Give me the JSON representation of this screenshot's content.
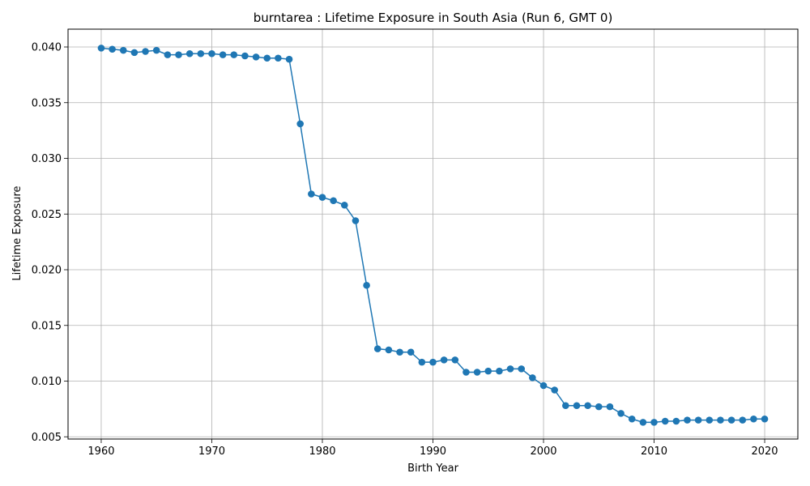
{
  "chart_data": {
    "type": "line",
    "title": "burntarea : Lifetime Exposure in South Asia (Run 6, GMT 0)",
    "xlabel": "Birth Year",
    "ylabel": "Lifetime Exposure",
    "xlim": [
      1957,
      2023
    ],
    "ylim": [
      0.0048,
      0.0416
    ],
    "xticks": [
      1960,
      1970,
      1980,
      1990,
      2000,
      2010,
      2020
    ],
    "yticks": [
      "0.005",
      "0.010",
      "0.015",
      "0.020",
      "0.025",
      "0.030",
      "0.035",
      "0.040"
    ],
    "grid": true,
    "line_color": "#1f77b4",
    "marker": "circle",
    "series": [
      {
        "x": [
          1960,
          1961,
          1962,
          1963,
          1964,
          1965,
          1966,
          1967,
          1968,
          1969,
          1970,
          1971,
          1972,
          1973,
          1974,
          1975,
          1976,
          1977,
          1978,
          1979,
          1980,
          1981,
          1982,
          1983,
          1984,
          1985,
          1986,
          1987,
          1988,
          1989,
          1990,
          1991,
          1992,
          1993,
          1994,
          1995,
          1996,
          1997,
          1998,
          1999,
          2000,
          2001,
          2002,
          2003,
          2004,
          2005,
          2006,
          2007,
          2008,
          2009,
          2010,
          2011,
          2012,
          2013,
          2014,
          2015,
          2016,
          2017,
          2018,
          2019,
          2020
        ],
        "values": [
          0.0399,
          0.0398,
          0.0397,
          0.0395,
          0.0396,
          0.0397,
          0.0393,
          0.0393,
          0.0394,
          0.0394,
          0.0394,
          0.0393,
          0.0393,
          0.0392,
          0.0391,
          0.039,
          0.039,
          0.0389,
          0.0331,
          0.0268,
          0.0265,
          0.0262,
          0.0258,
          0.0244,
          0.0186,
          0.0129,
          0.0128,
          0.0126,
          0.0126,
          0.0117,
          0.0117,
          0.0119,
          0.0119,
          0.0108,
          0.0108,
          0.0109,
          0.0109,
          0.0111,
          0.0111,
          0.0103,
          0.0096,
          0.0092,
          0.0078,
          0.0078,
          0.0078,
          0.0077,
          0.0077,
          0.0071,
          0.0066,
          0.0063,
          0.0063,
          0.0064,
          0.0064,
          0.0065,
          0.0065,
          0.0065,
          0.0065,
          0.0065,
          0.0065,
          0.0066,
          0.0066
        ]
      }
    ]
  }
}
